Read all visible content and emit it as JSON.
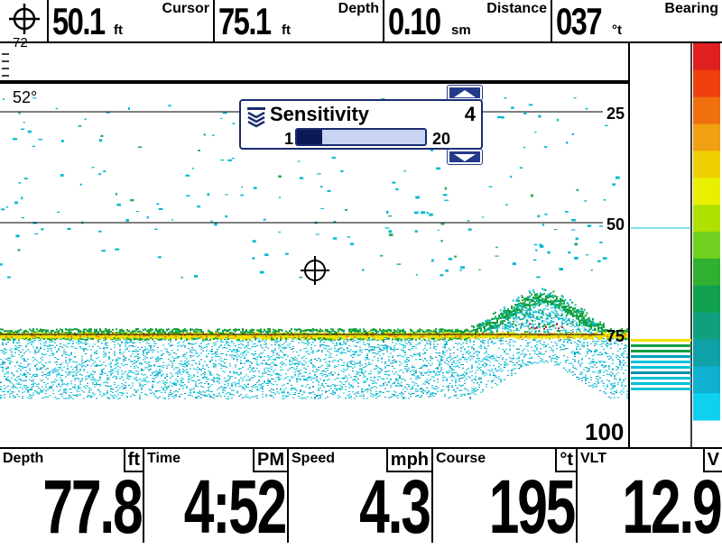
{
  "top_bar": {
    "cursor": {
      "value": "50.1",
      "unit": "ft",
      "label": "Cursor"
    },
    "depth": {
      "value": "75.1",
      "unit": "ft",
      "label": "Depth"
    },
    "distance": {
      "value": "0.10",
      "unit": "sm",
      "label": "Distance"
    },
    "bearing": {
      "value": "037",
      "unit": "°t",
      "label": "Bearing"
    }
  },
  "sonar": {
    "temperature": "52°",
    "top_scale": "72",
    "depth_marks": [
      "25",
      "50",
      "75",
      "100"
    ]
  },
  "sensitivity_popup": {
    "title": "Sensitivity",
    "value": "4",
    "min": "1",
    "max": "20",
    "level": 4,
    "max_level": 20
  },
  "bottom_bar": [
    {
      "label": "Depth",
      "unit": "ft",
      "value": "77.8"
    },
    {
      "label": "Time",
      "unit": "PM",
      "value": "4:52"
    },
    {
      "label": "Speed",
      "unit": "mph",
      "value": "4.3"
    },
    {
      "label": "Course",
      "unit": "°t",
      "value": "195"
    },
    {
      "label": "VLT",
      "unit": "V",
      "value": "12.9"
    }
  ],
  "colors": {
    "frame": "#000000",
    "popup_border": "#1a2c6e",
    "sonar_return_strong": "#c81818",
    "sonar_return_mid": "#f0e000",
    "sonar_return_weak": "#00c8e0"
  },
  "icons": {
    "cursor_icon": "crosshair-icon"
  }
}
